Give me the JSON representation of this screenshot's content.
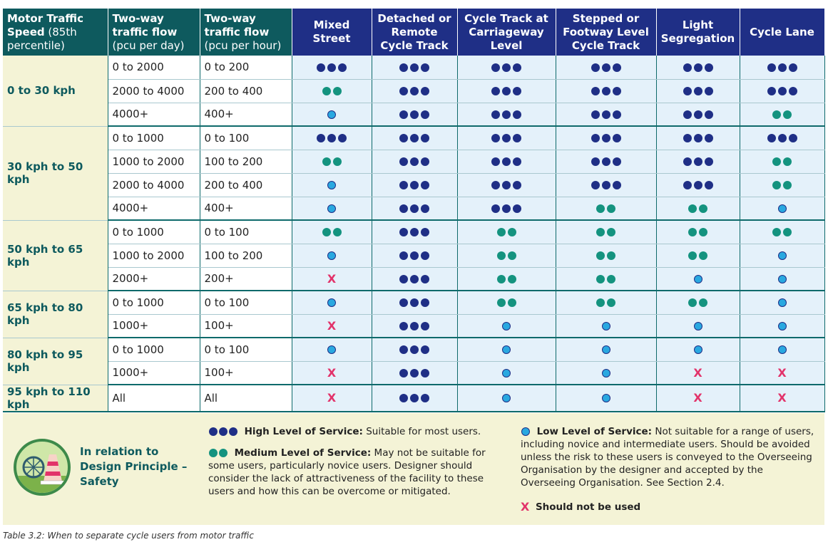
{
  "headers": [
    {
      "bold": "Motor Traffic Speed",
      "light": " (85th percentile)"
    },
    {
      "bold": "Two-way traffic flow",
      "light": "(pcu per day)"
    },
    {
      "bold": "Two-way traffic flow",
      "light": "(pcu per hour)"
    },
    {
      "label": "Mixed Street"
    },
    {
      "label": "Detached or Remote Cycle Track"
    },
    {
      "label": "Cycle Track at Carriageway Level"
    },
    {
      "label": "Stepped or Footway Level Cycle Track"
    },
    {
      "label": "Light Segregation"
    },
    {
      "label": "Cycle Lane"
    }
  ],
  "symbols": {
    "high": 3,
    "medium": 2,
    "low": 1,
    "none": "X"
  },
  "groups": [
    {
      "speed": "0 to 30 kph",
      "rows": [
        {
          "day": "0 to 2000",
          "hour": "0 to 200",
          "levels": [
            "high",
            "high",
            "high",
            "high",
            "high",
            "high"
          ]
        },
        {
          "day": "2000 to 4000",
          "hour": "200 to 400",
          "levels": [
            "medium",
            "high",
            "high",
            "high",
            "high",
            "high"
          ]
        },
        {
          "day": "4000+",
          "hour": "400+",
          "levels": [
            "low",
            "high",
            "high",
            "high",
            "high",
            "medium"
          ]
        }
      ]
    },
    {
      "speed": "30 kph to 50 kph",
      "rows": [
        {
          "day": "0 to 1000",
          "hour": "0 to 100",
          "levels": [
            "high",
            "high",
            "high",
            "high",
            "high",
            "high"
          ]
        },
        {
          "day": "1000 to 2000",
          "hour": "100 to 200",
          "levels": [
            "medium",
            "high",
            "high",
            "high",
            "high",
            "medium"
          ]
        },
        {
          "day": "2000 to 4000",
          "hour": "200 to 400",
          "levels": [
            "low",
            "high",
            "high",
            "high",
            "high",
            "medium"
          ]
        },
        {
          "day": "4000+",
          "hour": "400+",
          "levels": [
            "low",
            "high",
            "high",
            "medium",
            "medium",
            "low"
          ]
        }
      ]
    },
    {
      "speed": "50 kph to 65 kph",
      "rows": [
        {
          "day": "0 to 1000",
          "hour": "0 to 100",
          "levels": [
            "medium",
            "high",
            "medium",
            "medium",
            "medium",
            "medium"
          ]
        },
        {
          "day": "1000 to 2000",
          "hour": "100 to 200",
          "levels": [
            "low",
            "high",
            "medium",
            "medium",
            "medium",
            "low"
          ]
        },
        {
          "day": "2000+",
          "hour": "200+",
          "levels": [
            "none",
            "high",
            "medium",
            "medium",
            "low",
            "low"
          ]
        }
      ]
    },
    {
      "speed": "65 kph to 80 kph",
      "rows": [
        {
          "day": "0 to 1000",
          "hour": "0 to 100",
          "levels": [
            "low",
            "high",
            "medium",
            "medium",
            "medium",
            "low"
          ]
        },
        {
          "day": "1000+",
          "hour": "100+",
          "levels": [
            "none",
            "high",
            "low",
            "low",
            "low",
            "low"
          ]
        }
      ]
    },
    {
      "speed": "80 kph to 95 kph",
      "rows": [
        {
          "day": "0 to 1000",
          "hour": "0 to 100",
          "levels": [
            "low",
            "high",
            "low",
            "low",
            "low",
            "low"
          ]
        },
        {
          "day": "1000+",
          "hour": "100+",
          "levels": [
            "none",
            "high",
            "low",
            "low",
            "none",
            "none"
          ]
        }
      ]
    },
    {
      "speed": "95 kph to 110 kph",
      "rows": [
        {
          "day": "All",
          "hour": "All",
          "levels": [
            "none",
            "high",
            "low",
            "low",
            "none",
            "none"
          ]
        }
      ]
    }
  ],
  "legend": {
    "principle_lines": [
      "In relation to",
      "Design Principle –",
      "Safety"
    ],
    "high_title": "High Level of Service:",
    "high_text": " Suitable for most users.",
    "medium_title": "Medium Level of Service:",
    "medium_text": " May not be suitable for some users, particularly novice users. Designer should consider the lack of attractiveness of the facility to these users and how this can be overcome or mitigated.",
    "low_title": "Low Level of Service:",
    "low_text": " Not suitable for a range of users, including novice and intermediate users. Should be avoided unless the risk to these users is conveyed to the Overseeing Organisation by the designer and accepted by the Overseeing Organisation. See Section 2.4.",
    "x_symbol": "X",
    "x_title": "Should not be used"
  },
  "caption": "Table 3.2: When to separate cycle users from motor traffic",
  "colors": {
    "high": "#1f2f86",
    "medium": "#14937f",
    "low": "#29a8e0",
    "x": "#e2336a",
    "header_teal": "#0e5a5e",
    "header_navy": "#1f2f86",
    "speed_bg": "#f4f3d6",
    "cell_bg": "#e4f1fa"
  }
}
